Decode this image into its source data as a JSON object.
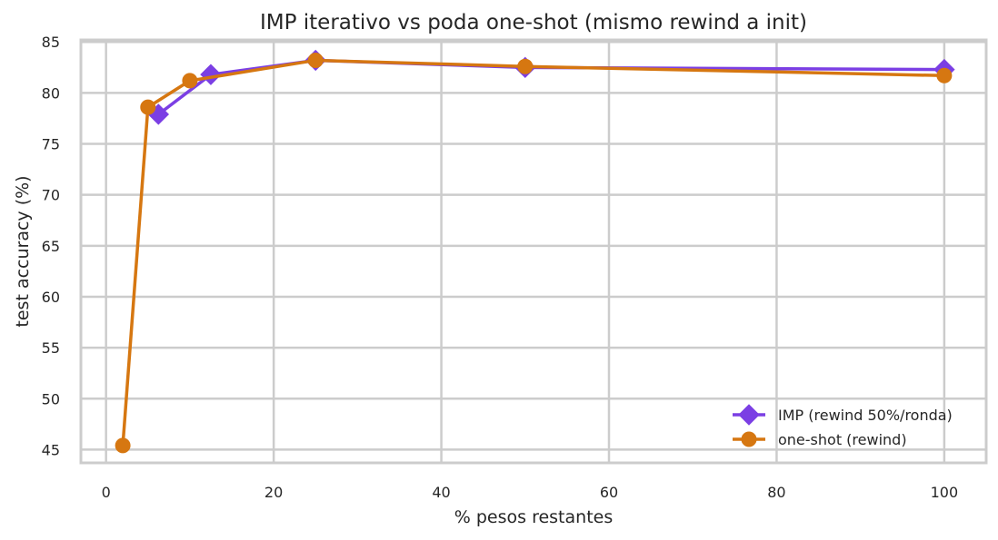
{
  "chart_data": {
    "type": "line",
    "title": "IMP iterativo vs poda one-shot (mismo rewind a init)",
    "xlabel": "% pesos restantes",
    "ylabel": "test accuracy (%)",
    "xlim": [
      -3,
      105
    ],
    "ylim": [
      43.7,
      85.2
    ],
    "xticks": [
      0,
      20,
      40,
      60,
      80,
      100
    ],
    "yticks": [
      45,
      50,
      55,
      60,
      65,
      70,
      75,
      80,
      85
    ],
    "grid": true,
    "legend_position": "lower-right",
    "series": [
      {
        "name": "IMP (rewind 50%/ronda)",
        "color": "#7b3fe4",
        "marker": "diamond",
        "x": [
          6.25,
          12.5,
          25,
          50,
          100
        ],
        "y": [
          77.9,
          81.8,
          83.2,
          82.5,
          82.3
        ]
      },
      {
        "name": "one-shot (rewind)",
        "color": "#d67711",
        "marker": "circle",
        "x": [
          2,
          5,
          10,
          25,
          50,
          100
        ],
        "y": [
          45.4,
          78.6,
          81.2,
          83.2,
          82.6,
          81.7
        ]
      }
    ]
  }
}
